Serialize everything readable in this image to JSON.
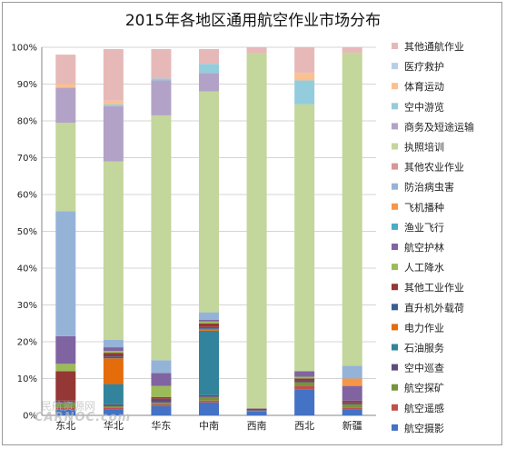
{
  "chart_data": {
    "type": "bar",
    "stacked": true,
    "title": "2015年各地区通用航空作业市场分布",
    "categories": [
      "东北",
      "华北",
      "华东",
      "中南",
      "西南",
      "西北",
      "新疆"
    ],
    "ylim": [
      0,
      100
    ],
    "y_ticks": [
      "0%",
      "10%",
      "20%",
      "30%",
      "40%",
      "50%",
      "60%",
      "70%",
      "80%",
      "90%",
      "100%"
    ],
    "grid": true,
    "legend_position": "right",
    "series": [
      {
        "name": "航空摄影",
        "color": "#4472C4",
        "values": [
          1.5,
          1.5,
          2.5,
          3.5,
          1,
          7,
          1.5
        ]
      },
      {
        "name": "航空遥感",
        "color": "#C0504D",
        "values": [
          0.5,
          0.5,
          0.5,
          0.5,
          0.2,
          1,
          0.5
        ]
      },
      {
        "name": "航空探矿",
        "color": "#77933C",
        "values": [
          1.5,
          0.5,
          0.5,
          1,
          0.1,
          1,
          1
        ]
      },
      {
        "name": "空中巡查",
        "color": "#604A7B",
        "values": [
          0.5,
          0.5,
          1,
          0.5,
          0.3,
          0.5,
          0.5
        ]
      },
      {
        "name": "石油服务",
        "color": "#31849B",
        "values": [
          0,
          5.5,
          0,
          17.5,
          0,
          0,
          0
        ]
      },
      {
        "name": "电力作业",
        "color": "#E46C0A",
        "values": [
          0,
          7,
          0,
          0.5,
          0,
          0,
          0
        ]
      },
      {
        "name": "直升机外载荷",
        "color": "#376092",
        "values": [
          0,
          0.5,
          0,
          0.5,
          0,
          0,
          0
        ]
      },
      {
        "name": "其他工业作业",
        "color": "#953735",
        "values": [
          8,
          1,
          0.5,
          1,
          0.2,
          0.5,
          0.5
        ]
      },
      {
        "name": "人工降水",
        "color": "#9BBB59",
        "values": [
          2,
          0.5,
          3,
          0.5,
          0.1,
          0.5,
          0
        ]
      },
      {
        "name": "航空护林",
        "color": "#8064A2",
        "values": [
          7.5,
          1,
          3.5,
          0.5,
          0.1,
          1.5,
          4
        ]
      },
      {
        "name": "渔业飞行",
        "color": "#4BACC6",
        "values": [
          0,
          0,
          0,
          0,
          0,
          0,
          0
        ]
      },
      {
        "name": "飞机播种",
        "color": "#F79646",
        "values": [
          0,
          0,
          0,
          0,
          0,
          0,
          2
        ]
      },
      {
        "name": "防治病虫害",
        "color": "#95B3D7",
        "values": [
          34,
          2,
          3.5,
          2,
          0,
          0,
          3.5
        ]
      },
      {
        "name": "其他农业作业",
        "color": "#D99694",
        "values": [
          0,
          0,
          0,
          0,
          0,
          0,
          0
        ]
      },
      {
        "name": "执照培训",
        "color": "#C3D69B",
        "values": [
          24,
          48.5,
          66.5,
          60,
          96.3,
          72.5,
          85
        ]
      },
      {
        "name": "商务及短途运输",
        "color": "#B3A2C7",
        "values": [
          9.5,
          15,
          9.5,
          5,
          0,
          0,
          0
        ]
      },
      {
        "name": "空中游览",
        "color": "#93CDDD",
        "values": [
          0,
          0.5,
          0.5,
          2.5,
          0,
          6.5,
          0
        ]
      },
      {
        "name": "体育运动",
        "color": "#FAC090",
        "values": [
          1,
          1,
          0,
          0,
          0,
          2,
          0
        ]
      },
      {
        "name": "医疗救护",
        "color": "#B9CDE5",
        "values": [
          0,
          0,
          0,
          0,
          0,
          0,
          0
        ]
      },
      {
        "name": "其他通航作业",
        "color": "#E6B9B8",
        "values": [
          8,
          14,
          8,
          4,
          1.7,
          7,
          1.5
        ]
      }
    ]
  },
  "watermark": {
    "line1": "民航资源网",
    "line2": "CARNOC.com"
  }
}
